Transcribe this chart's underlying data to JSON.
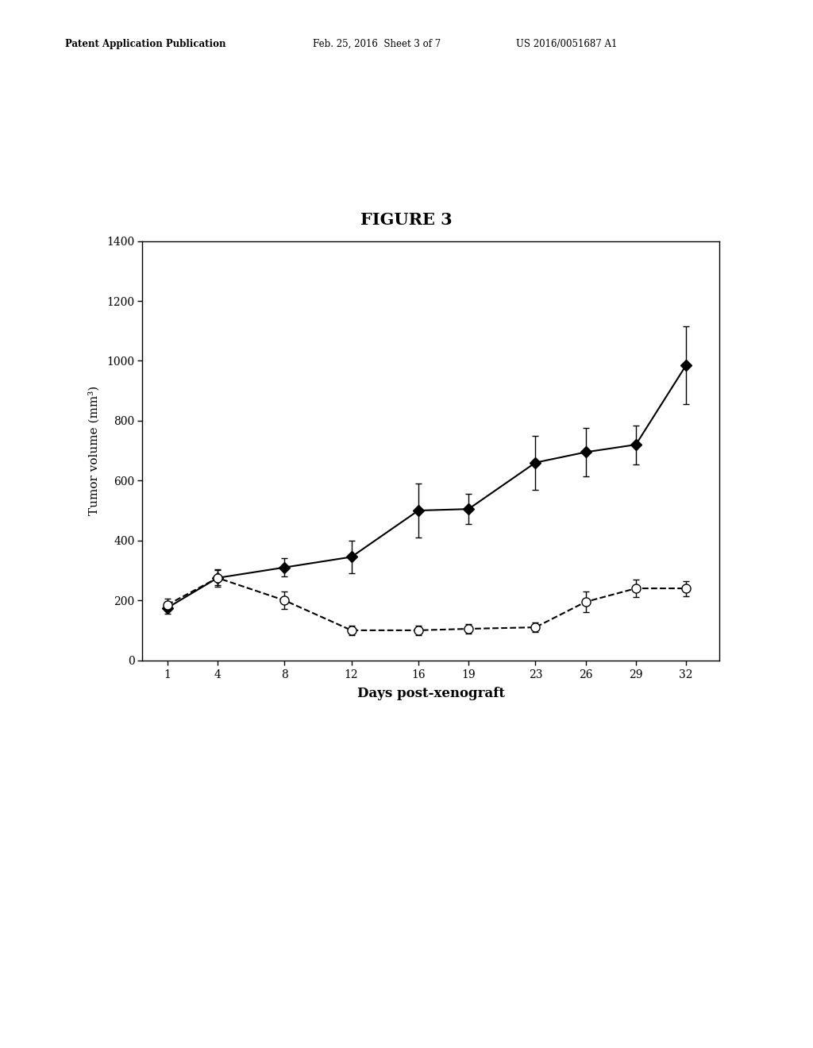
{
  "title": "FIGURE 3",
  "xlabel": "Days post-xenograft",
  "ylabel": "Tumor volume (mm³)",
  "xlim": [
    -0.5,
    34
  ],
  "ylim": [
    0,
    1400
  ],
  "xticks": [
    1,
    4,
    8,
    12,
    16,
    19,
    23,
    26,
    29,
    32
  ],
  "yticks": [
    0,
    200,
    400,
    600,
    800,
    1000,
    1200,
    1400
  ],
  "solid_x": [
    1,
    4,
    8,
    12,
    16,
    19,
    23,
    26,
    29,
    32
  ],
  "solid_y": [
    175,
    275,
    310,
    345,
    500,
    505,
    660,
    695,
    720,
    985
  ],
  "solid_yerr": [
    20,
    25,
    30,
    55,
    90,
    50,
    90,
    80,
    65,
    130
  ],
  "dashed_x": [
    1,
    4,
    8,
    12,
    16,
    19,
    23,
    26,
    29,
    32
  ],
  "dashed_y": [
    185,
    275,
    200,
    100,
    100,
    105,
    110,
    195,
    240,
    240
  ],
  "dashed_yerr": [
    20,
    30,
    30,
    15,
    15,
    15,
    15,
    35,
    30,
    25
  ],
  "line_color": "#000000",
  "background_color": "#ffffff",
  "header_left": "Patent Application Publication",
  "header_mid": "Feb. 25, 2016  Sheet 3 of 7",
  "header_right": "US 2016/0051687 A1"
}
